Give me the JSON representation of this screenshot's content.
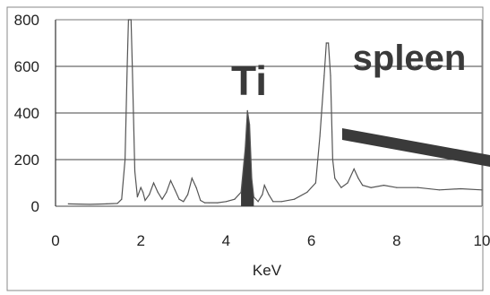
{
  "chart_data": {
    "type": "line",
    "xlabel": "KeV",
    "ylabel": "",
    "xlim": [
      0,
      10
    ],
    "ylim": [
      0,
      800
    ],
    "xticks": [
      "0",
      "2",
      "4",
      "6",
      "8",
      "10"
    ],
    "yticks": [
      "0",
      "200",
      "400",
      "600",
      "800"
    ],
    "grid": true,
    "series": [
      {
        "x": [
          0.3,
          0.8,
          1.2,
          1.45,
          1.55,
          1.63,
          1.68,
          1.71,
          1.74,
          1.77,
          1.8,
          1.86,
          1.92,
          2.0,
          2.05,
          2.1,
          2.2,
          2.3,
          2.4,
          2.5,
          2.6,
          2.7,
          2.8,
          2.9,
          3.0,
          3.1,
          3.2,
          3.3,
          3.4,
          3.5,
          3.6,
          3.8,
          4.0,
          4.2,
          4.35,
          4.45,
          4.5,
          4.55,
          4.6,
          4.65,
          4.75,
          4.85,
          4.9,
          5.0,
          5.1,
          5.3,
          5.6,
          5.9,
          6.1,
          6.2,
          6.3,
          6.35,
          6.4,
          6.45,
          6.5,
          6.55,
          6.7,
          6.85,
          7.0,
          7.1,
          7.2,
          7.4,
          7.7,
          8.0,
          8.5,
          9.0,
          9.5,
          10.0
        ],
        "values": [
          10,
          8,
          10,
          12,
          30,
          200,
          600,
          850,
          860,
          850,
          600,
          150,
          40,
          80,
          60,
          25,
          50,
          100,
          60,
          30,
          60,
          110,
          70,
          30,
          20,
          50,
          120,
          80,
          25,
          15,
          15,
          15,
          20,
          30,
          60,
          250,
          410,
          350,
          120,
          40,
          20,
          50,
          90,
          50,
          20,
          20,
          30,
          60,
          100,
          300,
          560,
          700,
          700,
          560,
          200,
          120,
          80,
          100,
          160,
          120,
          90,
          80,
          90,
          80,
          80,
          70,
          75,
          70
        ]
      }
    ],
    "annotations": [
      {
        "text": "Ti",
        "x": 4.5
      },
      {
        "text": "spleen"
      }
    ],
    "highlight": {
      "label": "Ti",
      "x_from": 4.35,
      "x_to": 4.65,
      "color": "#555555"
    },
    "colors": {
      "line": "#555555",
      "grid": "#444444",
      "axis": "#333333",
      "bar": "#3a3a3a"
    }
  }
}
